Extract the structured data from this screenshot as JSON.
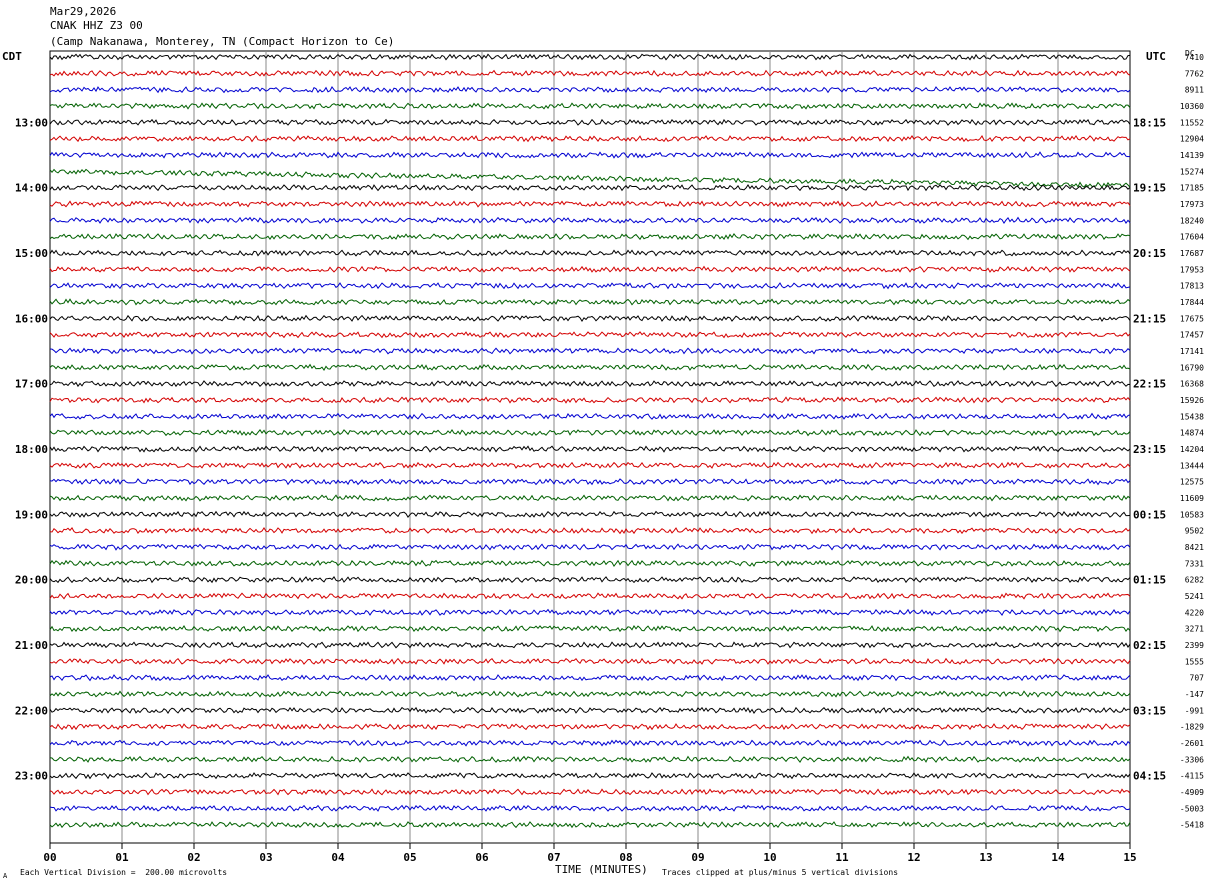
{
  "header": {
    "date": "Mar29,2026",
    "station": "CNAK HHZ Z3 00",
    "location": "(Camp Nakanawa, Monterey, TN (Compact Horizon to Ce)"
  },
  "axes": {
    "left_title": "CDT",
    "right_title": "UTC",
    "dc_title": "DC",
    "x_title": "TIME (MINUTES)"
  },
  "footer": {
    "scale_note": "Each Vertical Division =  200.00 microvolts",
    "clip_note": "Traces clipped at plus/minus 5 vertical divisions",
    "corner_mark": "A"
  },
  "colors": {
    "trace_cycle": [
      "#000000",
      "#d40000",
      "#0000d0",
      "#006000"
    ],
    "grid": "#888888"
  },
  "chart_data": {
    "type": "line",
    "title": "CNAK HHZ Z3 00 helicorder",
    "xlabel": "TIME (MINUTES)",
    "x_ticks": [
      "00",
      "01",
      "02",
      "03",
      "04",
      "05",
      "06",
      "07",
      "08",
      "09",
      "10",
      "11",
      "12",
      "13",
      "14",
      "15"
    ],
    "xlim": [
      0,
      15
    ],
    "left_time_labels": [
      "13:00",
      "14:00",
      "15:00",
      "16:00",
      "17:00",
      "18:00",
      "19:00",
      "20:00",
      "21:00",
      "22:00",
      "23:00"
    ],
    "right_time_labels": [
      "18:15",
      "19:15",
      "20:15",
      "21:15",
      "22:15",
      "23:15",
      "00:15",
      "01:15",
      "02:15",
      "03:15",
      "04:15"
    ],
    "time_label_first_row": 4,
    "time_label_every": 4,
    "dc_offsets": [
      7410,
      7762,
      8911,
      10360,
      11552,
      12904,
      14139,
      15274,
      17185,
      17973,
      18240,
      17604,
      17687,
      17953,
      17813,
      17844,
      17675,
      17457,
      17141,
      16790,
      16368,
      15926,
      15438,
      14874,
      14204,
      13444,
      12575,
      11609,
      10583,
      9502,
      8421,
      7331,
      6282,
      5241,
      4220,
      3271,
      2399,
      1555,
      707,
      -147,
      -991,
      -1829,
      -2601,
      -3306,
      -4115,
      -4909,
      -5003,
      -5418
    ],
    "trace_count": 48
  }
}
